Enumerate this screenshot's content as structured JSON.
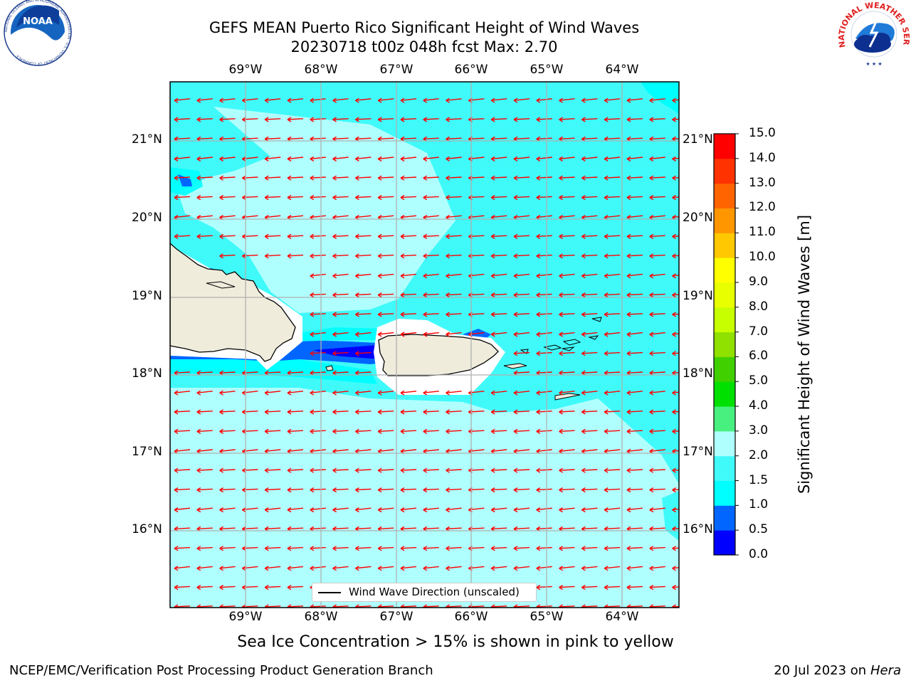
{
  "header": {
    "title_line1": "GEFS MEAN Puerto Rico Significant Height of Wind Waves",
    "title_line2": "20230718 t00z 048h fcst   Max: 2.70"
  },
  "map": {
    "extent": {
      "lon_min": -70.0,
      "lon_max": -63.26,
      "lat_min": 15.03,
      "lat_max": 21.75
    },
    "lon_ticks": [
      "69°W",
      "68°W",
      "67°W",
      "66°W",
      "65°W",
      "64°W"
    ],
    "lat_ticks": [
      "21°N",
      "20°N",
      "19°N",
      "18°N",
      "17°N",
      "16°N"
    ],
    "land_color": "#efecdc",
    "arrow_color": "#ff0000",
    "grid_color": "#b0b0b0",
    "wind_direction": "from east (arrows point west)"
  },
  "legend": {
    "label": "Wind Wave Direction (unscaled)"
  },
  "colorbar": {
    "title": "Significant Height of Wind Waves [m]",
    "levels": [
      "0.0",
      "0.5",
      "1.0",
      "1.5",
      "2.0",
      "3.0",
      "4.0",
      "5.0",
      "6.0",
      "7.0",
      "8.0",
      "9.0",
      "10.0",
      "11.0",
      "12.0",
      "13.0",
      "14.0",
      "15.0"
    ],
    "colors": [
      "#0000ff",
      "#0066ff",
      "#00ffff",
      "#40fafa",
      "#b0ffff",
      "#48f080",
      "#00e000",
      "#40d000",
      "#90e000",
      "#c8ff00",
      "#e8ff00",
      "#ffff00",
      "#ffc800",
      "#ff9600",
      "#ff6400",
      "#ff3200",
      "#ff0000"
    ]
  },
  "footer": {
    "note": "Sea Ice Concentration > 15% is shown in pink to yellow",
    "credit_left": "NCEP/EMC/Verification Post Processing Product Generation Branch",
    "credit_date": "20 Jul 2023 on",
    "credit_machine": "Hera"
  },
  "logos": {
    "left": {
      "name": "NOAA",
      "ring_text": "NATIONAL OCEANIC AND ATMOSPHERIC ADMINISTRATION · U.S. DEPARTMENT OF COMMERCE"
    },
    "right": {
      "name": "NATIONAL WEATHER SERVICE"
    }
  }
}
